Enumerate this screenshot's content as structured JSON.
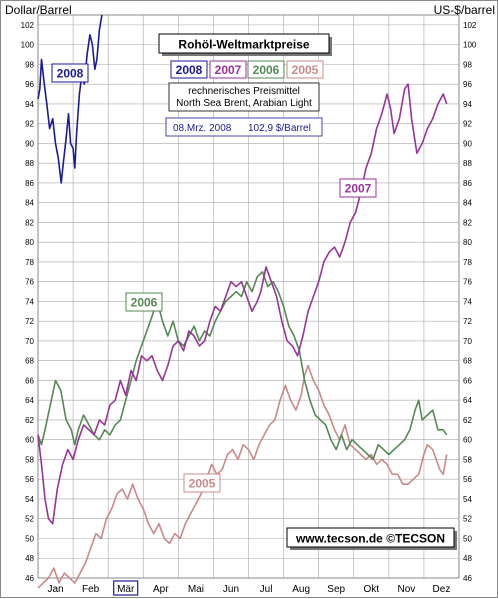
{
  "chart_data": {
    "type": "line",
    "title": "Rohöl-Weltmarktpreise",
    "subtitle_lines": [
      "rechnerisches Preismittel",
      "North Sea Brent, Arabian Light"
    ],
    "latest_date": "08.Mrz. 2008",
    "latest_price": "102,9 $/Barrel",
    "ylabel_left": "Dollar/Barrel",
    "ylabel_right": "US-$/barrel",
    "copyright": "www.tecson.de  ©TECSON",
    "ylim": [
      46,
      103
    ],
    "ytick_step": 2,
    "grid": true,
    "legend_position": "top-center",
    "months": [
      "Jan",
      "Feb",
      "Mär",
      "Apr",
      "Mai",
      "Jun",
      "Jul",
      "Aug",
      "Sep",
      "Okt",
      "Nov",
      "Dez"
    ],
    "highlight_month": "Mär",
    "series": [
      {
        "name": "2008",
        "color": "#1a1a99",
        "points": [
          [
            0.0,
            94.5
          ],
          [
            0.05,
            95.5
          ],
          [
            0.1,
            98.5
          ],
          [
            0.18,
            96.0
          ],
          [
            0.25,
            94.0
          ],
          [
            0.33,
            91.5
          ],
          [
            0.42,
            92.5
          ],
          [
            0.5,
            90.0
          ],
          [
            0.58,
            88.5
          ],
          [
            0.66,
            86.0
          ],
          [
            0.72,
            88.0
          ],
          [
            0.8,
            90.5
          ],
          [
            0.87,
            93.0
          ],
          [
            0.93,
            90.0
          ],
          [
            1.0,
            89.5
          ],
          [
            1.05,
            87.5
          ],
          [
            1.1,
            91.0
          ],
          [
            1.18,
            95.0
          ],
          [
            1.25,
            97.0
          ],
          [
            1.32,
            96.0
          ],
          [
            1.4,
            99.0
          ],
          [
            1.48,
            101.0
          ],
          [
            1.55,
            100.0
          ],
          [
            1.62,
            97.5
          ],
          [
            1.68,
            98.5
          ],
          [
            1.75,
            101.5
          ],
          [
            1.82,
            103.0
          ]
        ]
      },
      {
        "name": "2007",
        "color": "#993399",
        "points": [
          [
            0.0,
            60.5
          ],
          [
            0.1,
            57.5
          ],
          [
            0.2,
            54.0
          ],
          [
            0.3,
            52.0
          ],
          [
            0.42,
            51.5
          ],
          [
            0.55,
            55.0
          ],
          [
            0.7,
            57.5
          ],
          [
            0.85,
            59.0
          ],
          [
            1.0,
            58.0
          ],
          [
            1.15,
            60.0
          ],
          [
            1.3,
            61.5
          ],
          [
            1.45,
            61.0
          ],
          [
            1.6,
            60.5
          ],
          [
            1.75,
            62.0
          ],
          [
            1.9,
            61.5
          ],
          [
            2.05,
            63.5
          ],
          [
            2.2,
            64.0
          ],
          [
            2.35,
            66.0
          ],
          [
            2.5,
            64.5
          ],
          [
            2.65,
            67.0
          ],
          [
            2.8,
            66.0
          ],
          [
            2.95,
            68.5
          ],
          [
            3.1,
            68.0
          ],
          [
            3.25,
            68.5
          ],
          [
            3.4,
            67.0
          ],
          [
            3.55,
            66.0
          ],
          [
            3.7,
            67.5
          ],
          [
            3.85,
            69.5
          ],
          [
            4.0,
            70.0
          ],
          [
            4.15,
            69.0
          ],
          [
            4.3,
            71.0
          ],
          [
            4.45,
            70.5
          ],
          [
            4.6,
            69.5
          ],
          [
            4.75,
            70.0
          ],
          [
            4.9,
            72.0
          ],
          [
            5.05,
            73.5
          ],
          [
            5.2,
            73.0
          ],
          [
            5.35,
            74.5
          ],
          [
            5.5,
            76.0
          ],
          [
            5.65,
            75.5
          ],
          [
            5.8,
            76.0
          ],
          [
            5.95,
            74.5
          ],
          [
            6.1,
            73.0
          ],
          [
            6.25,
            74.0
          ],
          [
            6.35,
            75.0
          ],
          [
            6.5,
            77.5
          ],
          [
            6.65,
            76.0
          ],
          [
            6.8,
            74.5
          ],
          [
            6.95,
            72.0
          ],
          [
            7.1,
            70.0
          ],
          [
            7.25,
            69.5
          ],
          [
            7.4,
            68.5
          ],
          [
            7.55,
            70.5
          ],
          [
            7.7,
            73.0
          ],
          [
            7.85,
            74.5
          ],
          [
            8.0,
            76.0
          ],
          [
            8.15,
            78.0
          ],
          [
            8.3,
            79.0
          ],
          [
            8.45,
            79.5
          ],
          [
            8.6,
            78.5
          ],
          [
            8.75,
            80.0
          ],
          [
            8.9,
            82.0
          ],
          [
            9.05,
            83.0
          ],
          [
            9.2,
            85.0
          ],
          [
            9.35,
            87.5
          ],
          [
            9.5,
            89.0
          ],
          [
            9.65,
            91.5
          ],
          [
            9.8,
            93.0
          ],
          [
            9.95,
            95.0
          ],
          [
            10.05,
            93.5
          ],
          [
            10.15,
            91.0
          ],
          [
            10.3,
            92.5
          ],
          [
            10.45,
            95.5
          ],
          [
            10.55,
            96.0
          ],
          [
            10.65,
            92.5
          ],
          [
            10.8,
            89.0
          ],
          [
            10.95,
            90.0
          ],
          [
            11.1,
            91.5
          ],
          [
            11.25,
            92.5
          ],
          [
            11.4,
            94.0
          ],
          [
            11.55,
            95.0
          ],
          [
            11.65,
            94.0
          ]
        ]
      },
      {
        "name": "2006",
        "color": "#558855",
        "points": [
          [
            0.0,
            60.5
          ],
          [
            0.1,
            59.5
          ],
          [
            0.2,
            61.0
          ],
          [
            0.35,
            63.5
          ],
          [
            0.5,
            66.0
          ],
          [
            0.65,
            65.0
          ],
          [
            0.8,
            62.0
          ],
          [
            0.95,
            61.0
          ],
          [
            1.05,
            59.5
          ],
          [
            1.15,
            61.0
          ],
          [
            1.3,
            62.5
          ],
          [
            1.45,
            61.5
          ],
          [
            1.6,
            60.5
          ],
          [
            1.75,
            60.0
          ],
          [
            1.9,
            61.0
          ],
          [
            2.05,
            60.5
          ],
          [
            2.2,
            61.5
          ],
          [
            2.35,
            62.0
          ],
          [
            2.5,
            64.0
          ],
          [
            2.65,
            66.0
          ],
          [
            2.8,
            68.0
          ],
          [
            2.95,
            69.5
          ],
          [
            3.1,
            71.0
          ],
          [
            3.25,
            72.5
          ],
          [
            3.4,
            74.0
          ],
          [
            3.55,
            72.0
          ],
          [
            3.7,
            70.5
          ],
          [
            3.85,
            72.0
          ],
          [
            4.0,
            70.0
          ],
          [
            4.15,
            69.5
          ],
          [
            4.3,
            70.5
          ],
          [
            4.45,
            71.5
          ],
          [
            4.6,
            70.0
          ],
          [
            4.75,
            71.0
          ],
          [
            4.9,
            70.5
          ],
          [
            5.05,
            72.0
          ],
          [
            5.2,
            73.0
          ],
          [
            5.35,
            74.0
          ],
          [
            5.5,
            74.5
          ],
          [
            5.65,
            75.0
          ],
          [
            5.8,
            74.5
          ],
          [
            5.95,
            76.0
          ],
          [
            6.1,
            75.0
          ],
          [
            6.25,
            76.5
          ],
          [
            6.4,
            77.0
          ],
          [
            6.55,
            75.5
          ],
          [
            6.7,
            76.0
          ],
          [
            6.85,
            75.0
          ],
          [
            7.0,
            73.5
          ],
          [
            7.15,
            71.5
          ],
          [
            7.3,
            70.5
          ],
          [
            7.45,
            69.0
          ],
          [
            7.6,
            66.0
          ],
          [
            7.75,
            64.0
          ],
          [
            7.9,
            62.5
          ],
          [
            8.05,
            62.0
          ],
          [
            8.2,
            61.5
          ],
          [
            8.35,
            60.0
          ],
          [
            8.5,
            59.0
          ],
          [
            8.65,
            60.5
          ],
          [
            8.8,
            59.0
          ],
          [
            8.95,
            60.0
          ],
          [
            9.1,
            59.5
          ],
          [
            9.25,
            59.0
          ],
          [
            9.4,
            58.5
          ],
          [
            9.55,
            58.0
          ],
          [
            9.7,
            59.5
          ],
          [
            9.85,
            59.0
          ],
          [
            10.0,
            58.5
          ],
          [
            10.15,
            59.0
          ],
          [
            10.3,
            59.5
          ],
          [
            10.45,
            60.0
          ],
          [
            10.6,
            61.0
          ],
          [
            10.75,
            63.0
          ],
          [
            10.85,
            64.0
          ],
          [
            10.95,
            62.0
          ],
          [
            11.1,
            62.5
          ],
          [
            11.25,
            63.0
          ],
          [
            11.4,
            61.0
          ],
          [
            11.55,
            61.0
          ],
          [
            11.65,
            60.5
          ]
        ]
      },
      {
        "name": "2005",
        "color": "#cc8888",
        "points": [
          [
            0.0,
            45.0
          ],
          [
            0.15,
            45.5
          ],
          [
            0.3,
            46.0
          ],
          [
            0.45,
            47.0
          ],
          [
            0.6,
            45.5
          ],
          [
            0.75,
            46.5
          ],
          [
            0.9,
            46.0
          ],
          [
            1.05,
            45.5
          ],
          [
            1.2,
            46.5
          ],
          [
            1.35,
            47.5
          ],
          [
            1.5,
            49.0
          ],
          [
            1.65,
            50.5
          ],
          [
            1.8,
            50.0
          ],
          [
            1.95,
            52.0
          ],
          [
            2.1,
            53.0
          ],
          [
            2.25,
            54.5
          ],
          [
            2.4,
            55.0
          ],
          [
            2.55,
            54.0
          ],
          [
            2.7,
            55.5
          ],
          [
            2.85,
            54.0
          ],
          [
            3.0,
            53.0
          ],
          [
            3.15,
            51.5
          ],
          [
            3.3,
            50.5
          ],
          [
            3.45,
            51.5
          ],
          [
            3.6,
            50.0
          ],
          [
            3.75,
            49.5
          ],
          [
            3.9,
            50.5
          ],
          [
            4.05,
            50.0
          ],
          [
            4.2,
            51.5
          ],
          [
            4.35,
            52.5
          ],
          [
            4.5,
            53.5
          ],
          [
            4.65,
            54.5
          ],
          [
            4.8,
            56.0
          ],
          [
            4.95,
            57.5
          ],
          [
            5.1,
            56.5
          ],
          [
            5.25,
            57.0
          ],
          [
            5.4,
            58.5
          ],
          [
            5.55,
            59.0
          ],
          [
            5.7,
            58.0
          ],
          [
            5.85,
            59.5
          ],
          [
            6.0,
            59.0
          ],
          [
            6.15,
            58.0
          ],
          [
            6.3,
            59.5
          ],
          [
            6.45,
            60.5
          ],
          [
            6.6,
            61.5
          ],
          [
            6.75,
            62.0
          ],
          [
            6.9,
            64.0
          ],
          [
            7.05,
            65.5
          ],
          [
            7.2,
            64.0
          ],
          [
            7.35,
            63.0
          ],
          [
            7.5,
            64.5
          ],
          [
            7.6,
            66.5
          ],
          [
            7.7,
            67.5
          ],
          [
            7.85,
            66.0
          ],
          [
            8.0,
            65.0
          ],
          [
            8.15,
            63.5
          ],
          [
            8.3,
            62.5
          ],
          [
            8.45,
            61.0
          ],
          [
            8.6,
            60.0
          ],
          [
            8.75,
            61.5
          ],
          [
            8.9,
            59.5
          ],
          [
            9.05,
            59.0
          ],
          [
            9.2,
            58.5
          ],
          [
            9.35,
            58.0
          ],
          [
            9.5,
            58.5
          ],
          [
            9.65,
            57.5
          ],
          [
            9.8,
            58.0
          ],
          [
            9.95,
            57.5
          ],
          [
            10.1,
            56.5
          ],
          [
            10.25,
            56.5
          ],
          [
            10.4,
            55.5
          ],
          [
            10.55,
            55.5
          ],
          [
            10.7,
            56.0
          ],
          [
            10.85,
            56.5
          ],
          [
            11.0,
            58.5
          ],
          [
            11.1,
            59.5
          ],
          [
            11.25,
            59.0
          ],
          [
            11.35,
            58.0
          ],
          [
            11.45,
            57.0
          ],
          [
            11.55,
            56.5
          ],
          [
            11.65,
            58.5
          ]
        ]
      }
    ]
  }
}
